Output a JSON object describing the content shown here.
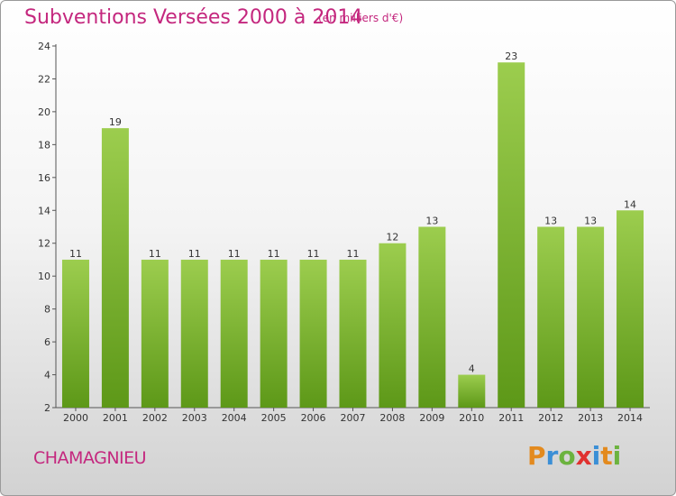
{
  "header": {
    "title": "Subventions Versées 2000 à 2014",
    "subtitle": "(en milliers d'€)"
  },
  "footer": {
    "commune": "CHAMAGNIEU",
    "logo": {
      "letters": [
        "P",
        "r",
        "o",
        "x",
        "i",
        "t",
        "i"
      ],
      "colors": [
        "#e38a1e",
        "#3b8fd6",
        "#6cb33f",
        "#e0312f",
        "#3b8fd6",
        "#e38a1e",
        "#6cb33f"
      ]
    }
  },
  "chart_data": {
    "type": "bar",
    "categories": [
      "2000",
      "2001",
      "2002",
      "2003",
      "2004",
      "2005",
      "2006",
      "2007",
      "2008",
      "2009",
      "2010",
      "2011",
      "2012",
      "2013",
      "2014"
    ],
    "values": [
      11,
      19,
      11,
      11,
      11,
      11,
      11,
      11,
      12,
      13,
      4,
      23,
      13,
      13,
      14
    ],
    "data_labels": [
      "11",
      "19",
      "11",
      "11",
      "11",
      "11",
      "11",
      "11",
      "12",
      "13",
      "4",
      "23",
      "13",
      "13",
      "14"
    ],
    "ylim": [
      2,
      24
    ],
    "yticks": [
      2,
      4,
      6,
      8,
      10,
      12,
      14,
      16,
      18,
      20,
      22,
      24
    ],
    "grid": false,
    "colors": {
      "bar_light": "#9ccd4e",
      "bar_dark": "#5d9818",
      "axis": "#555555",
      "text": "#333333"
    }
  }
}
